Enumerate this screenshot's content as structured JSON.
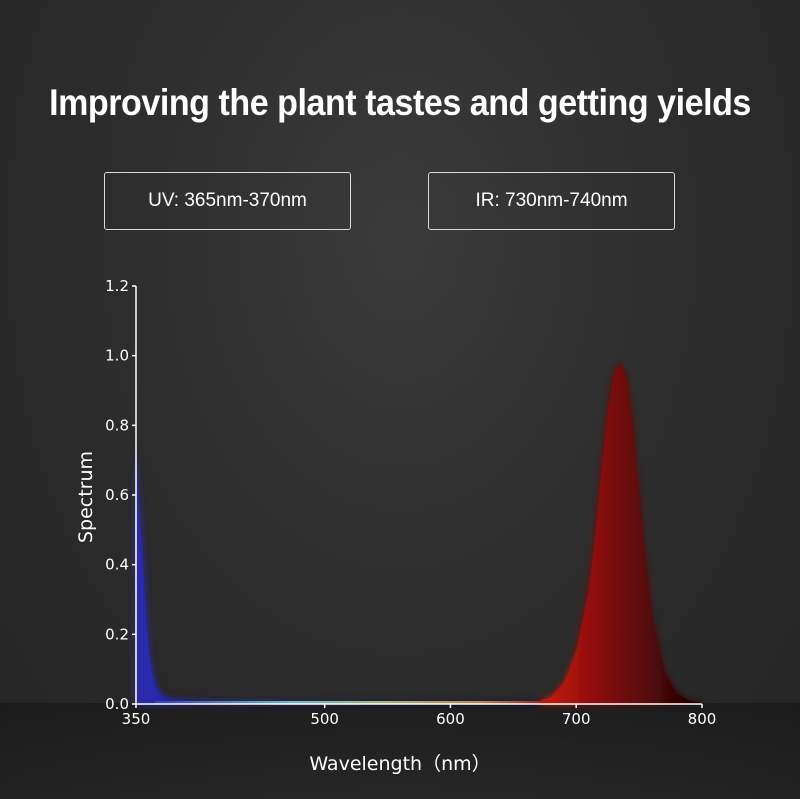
{
  "title": "Improving the plant tastes and getting yields",
  "badges": {
    "uv": "UV: 365nm-370nm",
    "ir": "IR: 730nm-740nm"
  },
  "chart_data": {
    "type": "area",
    "title": "",
    "xlabel": "Wavelength（nm）",
    "ylabel": "Spectrum",
    "xlim": [
      350,
      800
    ],
    "ylim": [
      0,
      1.2
    ],
    "xticks": [
      350,
      500,
      600,
      700,
      800
    ],
    "yticks": [
      "0.0",
      "0.2",
      "0.4",
      "0.6",
      "0.8",
      "1.0",
      "1.2"
    ],
    "grid": false,
    "series": [
      {
        "color": "#2a2aa0",
        "x": [
          350,
          352,
          355,
          358,
          360,
          363,
          366,
          370,
          375,
          380,
          390,
          400,
          420,
          450,
          500,
          550,
          600,
          650,
          670
        ],
        "y": [
          0.75,
          0.6,
          0.42,
          0.24,
          0.15,
          0.08,
          0.045,
          0.025,
          0.015,
          0.012,
          0.01,
          0.008,
          0.007,
          0.006,
          0.006,
          0.006,
          0.006,
          0.006,
          0.007
        ]
      },
      {
        "color": "#b01010",
        "x": [
          670,
          680,
          690,
          700,
          710,
          715,
          720,
          725,
          730,
          735,
          740,
          745,
          750,
          755,
          760,
          770,
          780,
          790,
          800
        ],
        "y": [
          0.007,
          0.02,
          0.06,
          0.15,
          0.33,
          0.48,
          0.67,
          0.84,
          0.95,
          0.98,
          0.93,
          0.78,
          0.58,
          0.4,
          0.25,
          0.09,
          0.03,
          0.01,
          0.004
        ]
      }
    ]
  }
}
